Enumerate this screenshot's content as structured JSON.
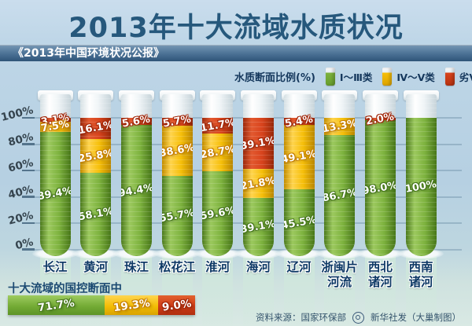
{
  "title": "2013年十大流域水质状况",
  "subtitle": "《2013年中国环境状况公报》",
  "legend": {
    "label": "水质断面比例(%)",
    "items": [
      {
        "key": "good",
        "label": "Ⅰ～Ⅲ类",
        "color": "#7db23e"
      },
      {
        "key": "fair",
        "label": "Ⅳ～Ⅴ类",
        "color": "#f6bf0a"
      },
      {
        "key": "poor",
        "label": "劣Ⅴ类",
        "color": "#d8441d"
      }
    ]
  },
  "chart_data": {
    "type": "bar",
    "stacked": true,
    "stack_order": "top-to-bottom",
    "title": "2013年十大流域水质状况",
    "ylabel": "水质断面比例(%)",
    "ylim": [
      0,
      100
    ],
    "yticks": [
      "100%",
      "80%",
      "60%",
      "40%",
      "20%",
      "0%"
    ],
    "grid": true,
    "legend_position": "top-right",
    "categories": [
      "长江",
      "黄河",
      "珠江",
      "松花江",
      "淮河",
      "海河",
      "辽河",
      "浙闽片河流",
      "西北诸河",
      "西南诸河"
    ],
    "category_lines": [
      [
        "长江"
      ],
      [
        "黄河"
      ],
      [
        "珠江"
      ],
      [
        "松花江"
      ],
      [
        "淮河"
      ],
      [
        "海河"
      ],
      [
        "辽河"
      ],
      [
        "浙闽片",
        "河流"
      ],
      [
        "西北",
        "诸河"
      ],
      [
        "西南",
        "诸河"
      ]
    ],
    "series": [
      {
        "name": "劣Ⅴ类",
        "key": "poor",
        "color": "#d8441d",
        "values": [
          3.1,
          16.1,
          5.6,
          5.7,
          11.7,
          39.1,
          5.4,
          0,
          2.0,
          0
        ],
        "labels": [
          "3.1%",
          "16.1%",
          "5.6%",
          "5.7%",
          "11.7%",
          "39.1%",
          "5.4%",
          "",
          "2.0%",
          ""
        ]
      },
      {
        "name": "Ⅳ～Ⅴ类",
        "key": "fair",
        "color": "#f6bf0a",
        "values": [
          7.5,
          25.8,
          0,
          38.6,
          28.7,
          21.8,
          49.1,
          13.3,
          0,
          0
        ],
        "labels": [
          "7.5%",
          "25.8%",
          "",
          "38.6%",
          "28.7%",
          "21.8%",
          "49.1%",
          "13.3%",
          "",
          ""
        ]
      },
      {
        "name": "Ⅰ～Ⅲ类",
        "key": "good",
        "color": "#7db23e",
        "values": [
          89.4,
          58.1,
          94.4,
          55.7,
          59.6,
          39.1,
          45.5,
          86.7,
          98.0,
          100
        ],
        "labels": [
          "89.4%",
          "58.1%",
          "94.4%",
          "55.7%",
          "59.6%",
          "39.1%",
          "45.5%",
          "86.7%",
          "98.0%",
          "100%"
        ]
      }
    ]
  },
  "summary": {
    "title": "十大流域的国控断面中",
    "segments": [
      {
        "key": "good",
        "value": 71.7,
        "label": "71.7%"
      },
      {
        "key": "fair",
        "value": 19.3,
        "label": "19.3%"
      },
      {
        "key": "poor",
        "value": 9.0,
        "label": "9.0%"
      }
    ]
  },
  "footer": {
    "source": "资料来源：国家环保部",
    "credit": "新华社发（大巢制图）"
  }
}
